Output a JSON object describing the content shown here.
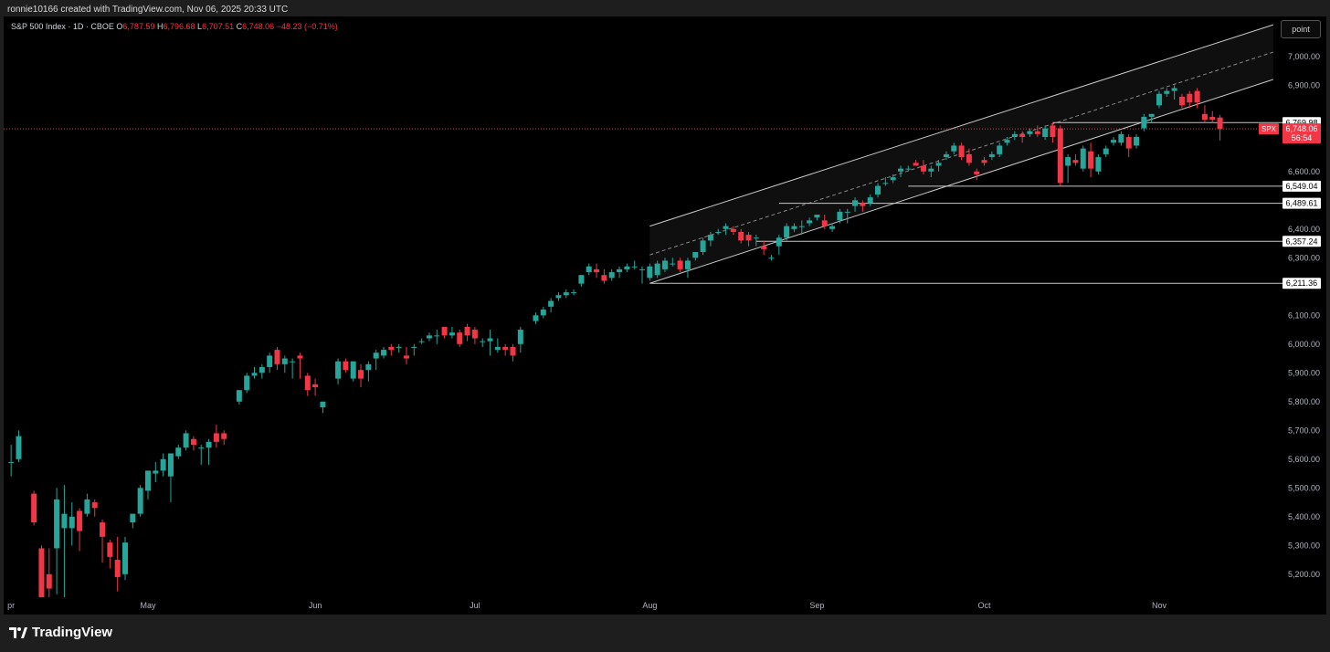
{
  "header": {
    "caption": "ronnie10166 created with TradingView.com, Nov 06, 2025 20:33 UTC"
  },
  "legend": {
    "symbol": "S&P 500 Index · 1D · CBOE",
    "open_label": "O",
    "open": "6,787.59",
    "high_label": "H",
    "high": "6,796.68",
    "low_label": "L",
    "low": "6,707.51",
    "close_label": "C",
    "close": "6,748.06",
    "change": "−48.23 (−0.71%)"
  },
  "toolbar": {
    "point_label": "point"
  },
  "brand": {
    "name": "TradingView"
  },
  "colors": {
    "up": "#26a69a",
    "down": "#f23645",
    "background": "#000000",
    "axis_text": "#b2b5be",
    "line": "#c8c8c8"
  },
  "chart_data": {
    "type": "candlestick",
    "title": "S&P 500 Index · 1D · CBOE",
    "y_ticks": [
      5200,
      5300,
      5400,
      5500,
      5600,
      5700,
      5800,
      5900,
      6000,
      6100,
      6300,
      6400,
      6600,
      6900,
      7000
    ],
    "y_tick_labels": [
      "5,200.00",
      "5,300.00",
      "5,400.00",
      "5,500.00",
      "5,600.00",
      "5,700.00",
      "5,800.00",
      "5,900.00",
      "6,000.00",
      "6,100.00",
      "6,300.00",
      "6,400.00",
      "6,600.00",
      "6,900.00",
      "7,000.00"
    ],
    "ylim": [
      5120,
      7120
    ],
    "x_labels": [
      {
        "label": "pr",
        "x": 8.5
      },
      {
        "label": "May",
        "x": 26.5
      },
      {
        "label": "Jun",
        "x": 48.5
      },
      {
        "label": "Jul",
        "x": 69.5
      },
      {
        "label": "Aug",
        "x": 92.5
      },
      {
        "label": "Sep",
        "x": 114.5
      },
      {
        "label": "Oct",
        "x": 136.5
      },
      {
        "label": "Nov",
        "x": 159.5
      }
    ],
    "xlim": [
      8,
      175
    ],
    "candles": [
      [
        8.5,
        5590,
        5650,
        5540,
        5590
      ],
      [
        9.5,
        5600,
        5700,
        5590,
        5680
      ],
      [
        11.5,
        5480,
        5490,
        5370,
        5380
      ],
      [
        12.5,
        5290,
        5300,
        5120,
        5120
      ],
      [
        13.5,
        5200,
        5290,
        5120,
        5150
      ],
      [
        14.5,
        5290,
        5500,
        5130,
        5460
      ],
      [
        15.5,
        5360,
        5510,
        5120,
        5410
      ],
      [
        16.5,
        5360,
        5450,
        5300,
        5400
      ],
      [
        17.5,
        5420,
        5430,
        5280,
        5350
      ],
      [
        18.5,
        5410,
        5480,
        5400,
        5460
      ],
      [
        19.5,
        5450,
        5460,
        5400,
        5430
      ],
      [
        20.5,
        5380,
        5390,
        5240,
        5330
      ],
      [
        21.5,
        5310,
        5320,
        5220,
        5260
      ],
      [
        22.5,
        5250,
        5330,
        5140,
        5190
      ],
      [
        23.5,
        5200,
        5330,
        5180,
        5310
      ],
      [
        24.5,
        5380,
        5410,
        5360,
        5410
      ],
      [
        25.5,
        5410,
        5510,
        5400,
        5500
      ],
      [
        26.5,
        5490,
        5560,
        5460,
        5560
      ],
      [
        27.5,
        5550,
        5590,
        5520,
        5560
      ],
      [
        28.5,
        5560,
        5620,
        5540,
        5600
      ],
      [
        29.5,
        5540,
        5620,
        5450,
        5620
      ],
      [
        30.5,
        5610,
        5650,
        5600,
        5640
      ],
      [
        31.5,
        5640,
        5700,
        5630,
        5690
      ],
      [
        32.5,
        5670,
        5680,
        5630,
        5650
      ],
      [
        33.5,
        5640,
        5650,
        5580,
        5640
      ],
      [
        34.5,
        5640,
        5670,
        5580,
        5660
      ],
      [
        35.5,
        5690,
        5720,
        5640,
        5660
      ],
      [
        36.5,
        5690,
        5700,
        5650,
        5670
      ],
      [
        38.5,
        5800,
        5840,
        5790,
        5840
      ],
      [
        39.5,
        5840,
        5900,
        5830,
        5890
      ],
      [
        40.5,
        5890,
        5920,
        5880,
        5900
      ],
      [
        41.5,
        5900,
        5930,
        5880,
        5920
      ],
      [
        42.5,
        5920,
        5970,
        5900,
        5960
      ],
      [
        43.5,
        5980,
        5990,
        5910,
        5930
      ],
      [
        44.5,
        5930,
        5960,
        5900,
        5950
      ],
      [
        45.5,
        5940,
        5950,
        5880,
        5940
      ],
      [
        46.5,
        5960,
        5970,
        5880,
        5950
      ],
      [
        47.5,
        5890,
        5900,
        5820,
        5840
      ],
      [
        48.5,
        5860,
        5880,
        5820,
        5850
      ],
      [
        49.5,
        5780,
        5800,
        5760,
        5800
      ],
      [
        51.5,
        5880,
        5950,
        5860,
        5940
      ],
      [
        52.5,
        5940,
        5950,
        5900,
        5910
      ],
      [
        53.5,
        5880,
        5940,
        5870,
        5940
      ],
      [
        54.5,
        5910,
        5930,
        5850,
        5880
      ],
      [
        55.5,
        5910,
        5940,
        5870,
        5930
      ],
      [
        56.5,
        5950,
        5980,
        5910,
        5970
      ],
      [
        57.5,
        5960,
        5990,
        5950,
        5980
      ],
      [
        58.5,
        5990,
        6000,
        5960,
        5980
      ],
      [
        59.5,
        5990,
        6000,
        5970,
        5990
      ],
      [
        60.5,
        5960,
        5990,
        5930,
        5950
      ],
      [
        61.5,
        5990,
        6000,
        5960,
        5990
      ],
      [
        62.5,
        6010,
        6020,
        6000,
        6010
      ],
      [
        63.5,
        6020,
        6040,
        6010,
        6030
      ],
      [
        64.5,
        6030,
        6050,
        6000,
        6030
      ],
      [
        65.5,
        6060,
        6060,
        6020,
        6030
      ],
      [
        66.5,
        6030,
        6060,
        6020,
        6040
      ],
      [
        67.5,
        6040,
        6050,
        5990,
        6000
      ],
      [
        68.5,
        6060,
        6070,
        6010,
        6030
      ],
      [
        69.5,
        6050,
        6060,
        6000,
        6020
      ],
      [
        70.5,
        6010,
        6020,
        5990,
        6010
      ],
      [
        71.5,
        6010,
        6050,
        5960,
        6020
      ],
      [
        72.5,
        5980,
        6020,
        5970,
        5990
      ],
      [
        73.5,
        5990,
        6000,
        5960,
        5980
      ],
      [
        74.5,
        5990,
        6000,
        5940,
        5960
      ],
      [
        75.5,
        6000,
        6060,
        5970,
        6050
      ],
      [
        77.5,
        6080,
        6110,
        6070,
        6100
      ],
      [
        78.5,
        6100,
        6130,
        6090,
        6120
      ],
      [
        79.5,
        6130,
        6160,
        6110,
        6150
      ],
      [
        80.5,
        6160,
        6180,
        6150,
        6170
      ],
      [
        81.5,
        6170,
        6190,
        6160,
        6180
      ],
      [
        82.5,
        6180,
        6190,
        6170,
        6180
      ],
      [
        83.5,
        6210,
        6240,
        6200,
        6240
      ],
      [
        84.5,
        6250,
        6280,
        6240,
        6270
      ],
      [
        85.5,
        6260,
        6280,
        6230,
        6250
      ],
      [
        86.5,
        6240,
        6260,
        6210,
        6220
      ],
      [
        87.5,
        6230,
        6260,
        6220,
        6250
      ],
      [
        88.5,
        6250,
        6270,
        6230,
        6260
      ],
      [
        89.5,
        6260,
        6280,
        6250,
        6270
      ],
      [
        90.5,
        6270,
        6290,
        6260,
        6270
      ],
      [
        91.5,
        6260,
        6270,
        6210,
        6260
      ],
      [
        92.5,
        6230,
        6280,
        6220,
        6270
      ],
      [
        93.5,
        6240,
        6290,
        6230,
        6280
      ],
      [
        94.5,
        6260,
        6300,
        6250,
        6290
      ],
      [
        95.5,
        6280,
        6300,
        6270,
        6280
      ],
      [
        96.5,
        6290,
        6300,
        6250,
        6260
      ],
      [
        97.5,
        6260,
        6300,
        6230,
        6290
      ],
      [
        98.5,
        6300,
        6320,
        6290,
        6320
      ],
      [
        99.5,
        6320,
        6370,
        6310,
        6360
      ],
      [
        100.5,
        6360,
        6390,
        6340,
        6380
      ],
      [
        101.5,
        6390,
        6400,
        6380,
        6390
      ],
      [
        102.5,
        6400,
        6420,
        6380,
        6410
      ],
      [
        103.5,
        6400,
        6410,
        6380,
        6390
      ],
      [
        104.5,
        6390,
        6400,
        6350,
        6360
      ],
      [
        105.5,
        6380,
        6390,
        6340,
        6360
      ],
      [
        106.5,
        6370,
        6380,
        6340,
        6370
      ],
      [
        107.5,
        6340,
        6360,
        6310,
        6330
      ],
      [
        108.5,
        6300,
        6310,
        6290,
        6300
      ],
      [
        109.5,
        6340,
        6380,
        6310,
        6370
      ],
      [
        110.5,
        6370,
        6420,
        6360,
        6410
      ],
      [
        111.5,
        6400,
        6420,
        6390,
        6410
      ],
      [
        112.5,
        6410,
        6430,
        6380,
        6410
      ],
      [
        113.5,
        6420,
        6440,
        6410,
        6430
      ],
      [
        114.5,
        6440,
        6450,
        6430,
        6450
      ],
      [
        115.5,
        6430,
        6450,
        6400,
        6410
      ],
      [
        116.5,
        6400,
        6420,
        6390,
        6410
      ],
      [
        117.5,
        6430,
        6470,
        6420,
        6460
      ],
      [
        118.5,
        6460,
        6470,
        6420,
        6460
      ],
      [
        119.5,
        6480,
        6510,
        6460,
        6500
      ],
      [
        120.5,
        6490,
        6500,
        6460,
        6480
      ],
      [
        121.5,
        6490,
        6520,
        6480,
        6510
      ],
      [
        122.5,
        6520,
        6560,
        6510,
        6550
      ],
      [
        123.5,
        6560,
        6580,
        6550,
        6560
      ],
      [
        124.5,
        6570,
        6590,
        6560,
        6580
      ],
      [
        125.5,
        6600,
        6620,
        6580,
        6610
      ],
      [
        126.5,
        6610,
        6620,
        6600,
        6610
      ],
      [
        127.5,
        6630,
        6640,
        6620,
        6620
      ],
      [
        128.5,
        6620,
        6640,
        6590,
        6600
      ],
      [
        129.5,
        6600,
        6620,
        6580,
        6610
      ],
      [
        130.5,
        6620,
        6640,
        6600,
        6630
      ],
      [
        131.5,
        6650,
        6670,
        6640,
        6660
      ],
      [
        132.5,
        6670,
        6700,
        6660,
        6690
      ],
      [
        133.5,
        6690,
        6700,
        6640,
        6650
      ],
      [
        134.5,
        6660,
        6680,
        6620,
        6630
      ],
      [
        135.5,
        6600,
        6610,
        6570,
        6590
      ],
      [
        136.5,
        6640,
        6650,
        6620,
        6630
      ],
      [
        137.5,
        6650,
        6670,
        6640,
        6660
      ],
      [
        138.5,
        6660,
        6700,
        6650,
        6690
      ],
      [
        139.5,
        6700,
        6720,
        6690,
        6710
      ],
      [
        140.5,
        6720,
        6740,
        6710,
        6730
      ],
      [
        141.5,
        6730,
        6740,
        6700,
        6720
      ],
      [
        142.5,
        6730,
        6750,
        6720,
        6740
      ],
      [
        143.5,
        6740,
        6760,
        6720,
        6730
      ],
      [
        144.5,
        6720,
        6760,
        6710,
        6750
      ],
      [
        145.5,
        6760,
        6770,
        6700,
        6720
      ],
      [
        146.5,
        6750,
        6760,
        6550,
        6560
      ],
      [
        147.5,
        6620,
        6660,
        6560,
        6650
      ],
      [
        148.5,
        6640,
        6660,
        6620,
        6630
      ],
      [
        149.5,
        6610,
        6690,
        6600,
        6680
      ],
      [
        150.5,
        6670,
        6700,
        6580,
        6610
      ],
      [
        151.5,
        6600,
        6660,
        6590,
        6650
      ],
      [
        152.5,
        6660,
        6690,
        6650,
        6680
      ],
      [
        153.5,
        6700,
        6720,
        6690,
        6710
      ],
      [
        154.5,
        6700,
        6740,
        6690,
        6730
      ],
      [
        155.5,
        6720,
        6730,
        6650,
        6680
      ],
      [
        156.5,
        6690,
        6730,
        6680,
        6720
      ],
      [
        157.5,
        6750,
        6800,
        6740,
        6790
      ],
      [
        158.5,
        6790,
        6800,
        6770,
        6800
      ],
      [
        159.5,
        6830,
        6880,
        6820,
        6870
      ],
      [
        160.5,
        6870,
        6890,
        6860,
        6880
      ],
      [
        161.5,
        6880,
        6900,
        6850,
        6890
      ],
      [
        162.5,
        6860,
        6870,
        6820,
        6830
      ],
      [
        163.5,
        6870,
        6880,
        6820,
        6840
      ],
      [
        164.5,
        6880,
        6890,
        6820,
        6840
      ],
      [
        165.5,
        6800,
        6830,
        6770,
        6780
      ],
      [
        166.5,
        6790,
        6810,
        6770,
        6780
      ],
      [
        167.5,
        6787.59,
        6796.68,
        6707.51,
        6748.06
      ]
    ],
    "channel": {
      "lower_start": [
        92.5,
        6211.36
      ],
      "lower_end": [
        174.5,
        6920
      ],
      "upper_start": [
        92.5,
        6410
      ],
      "upper_end": [
        174.5,
        7110
      ],
      "mid_start": [
        92.5,
        6310
      ],
      "mid_end": [
        174.5,
        7015
      ]
    },
    "levels": [
      {
        "value": 6769.98,
        "label": "6,769.98",
        "x_start": 145.5
      },
      {
        "value": 6549.04,
        "label": "6,549.04",
        "x_start": 126.5
      },
      {
        "value": 6489.61,
        "label": "6,489.61",
        "x_start": 109.5
      },
      {
        "value": 6357.24,
        "label": "6,357.24",
        "x_start": 106.5
      },
      {
        "value": 6211.36,
        "label": "6,211.36",
        "x_start": 92.5
      }
    ],
    "current": {
      "symbol": "SPX",
      "value": 6748.06,
      "label": "6,748.06",
      "countdown": "56:54"
    }
  }
}
